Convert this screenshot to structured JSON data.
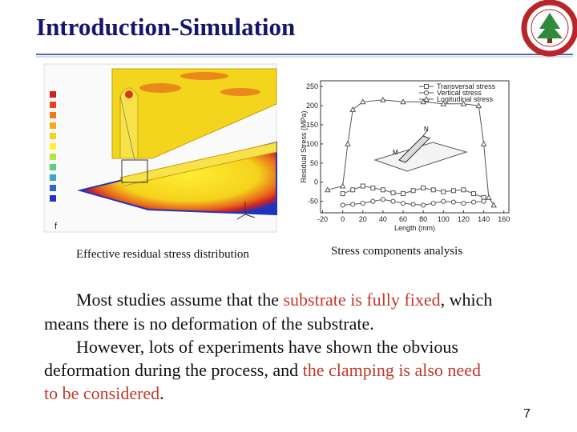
{
  "header": {
    "title": "Introduction-Simulation"
  },
  "figures": [
    {
      "label": "f",
      "caption": "Effective residual stress distribution"
    },
    {
      "caption": "Stress components analysis",
      "chart_data": {
        "type": "line",
        "xlabel": "Length (mm)",
        "ylabel": "Residual Stress (MPa)",
        "xlim": [
          -22,
          165
        ],
        "ylim": [
          -80,
          265
        ],
        "xticks": [
          -20,
          0,
          20,
          40,
          60,
          80,
          100,
          120,
          140,
          160
        ],
        "yticks": [
          -50,
          0,
          50,
          100,
          150,
          200,
          250
        ],
        "legend": "upper right",
        "annotations": [
          "M",
          "N"
        ],
        "series": [
          {
            "name": "Transversal stress",
            "color": "#555555",
            "marker": "square",
            "x": [
              0,
              10,
              20,
              30,
              40,
              50,
              60,
              70,
              80,
              90,
              100,
              110,
              120,
              130,
              140
            ],
            "values": [
              -30,
              -20,
              -10,
              -15,
              -20,
              -28,
              -30,
              -22,
              -15,
              -20,
              -25,
              -22,
              -20,
              -30,
              -40
            ]
          },
          {
            "name": "Vertical stress",
            "color": "#555555",
            "marker": "circle",
            "x": [
              0,
              10,
              20,
              30,
              40,
              50,
              60,
              70,
              80,
              90,
              100,
              110,
              120,
              130,
              140
            ],
            "values": [
              -60,
              -58,
              -55,
              -50,
              -45,
              -50,
              -55,
              -58,
              -60,
              -55,
              -50,
              -52,
              -55,
              -52,
              -50
            ]
          },
          {
            "name": "Logitudinal stress",
            "color": "#555555",
            "marker": "triangle",
            "x": [
              -15,
              0,
              5,
              10,
              20,
              40,
              60,
              80,
              100,
              120,
              135,
              140,
              145,
              150
            ],
            "values": [
              -20,
              -10,
              100,
              190,
              210,
              215,
              210,
              210,
              205,
              205,
              200,
              100,
              -40,
              -60
            ]
          }
        ]
      }
    }
  ],
  "body": {
    "lines": [
      [
        {
          "text": "Most studies assume that the ",
          "color": "#111111"
        },
        {
          "text": "substrate is fully fixed",
          "color": "#c0392b"
        },
        {
          "text": ", which",
          "color": "#111111"
        }
      ],
      [
        {
          "text": "means there is no deformation of the substrate.",
          "color": "#111111"
        }
      ],
      [
        {
          "text": "However, lots of experiments have shown the obvious",
          "color": "#111111"
        }
      ],
      [
        {
          "text": "deformation during the process, and ",
          "color": "#111111"
        },
        {
          "text": "the clamping is also need",
          "color": "#c0392b"
        }
      ],
      [
        {
          "text": "to be considered",
          "color": "#c0392b"
        },
        {
          "text": ".",
          "color": "#111111"
        }
      ]
    ]
  },
  "page_number": "7"
}
